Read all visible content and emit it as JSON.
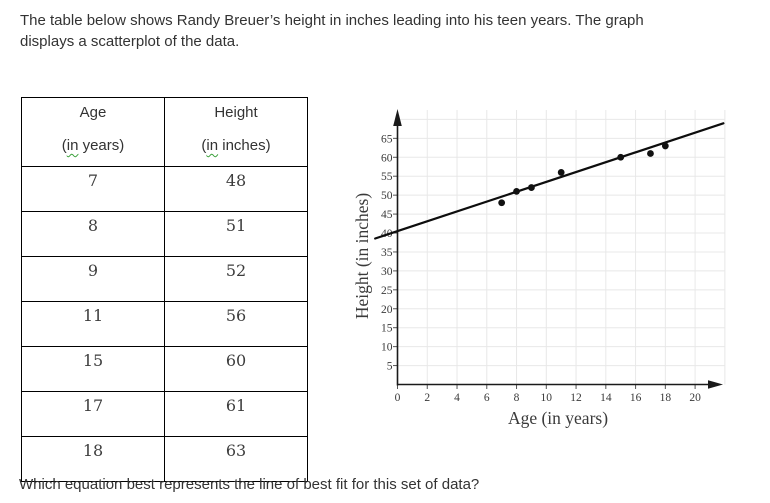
{
  "intro": {
    "lines": [
      "The table below shows Randy Breuer’s height in inches leading into his teen years. The graph",
      "displays a scatterplot of the data."
    ]
  },
  "question": "Which equation best represents the line of best fit for this set of data?",
  "table": {
    "columns": [
      {
        "title": "Age",
        "unit_prefix": "(",
        "unit_word": "in",
        "unit_suffix": " years)"
      },
      {
        "title": "Height",
        "unit_prefix": "(",
        "unit_word": "in",
        "unit_suffix": " inches)"
      }
    ],
    "rows": [
      [
        "7",
        "48"
      ],
      [
        "8",
        "51"
      ],
      [
        "9",
        "52"
      ],
      [
        "11",
        "56"
      ],
      [
        "15",
        "60"
      ],
      [
        "17",
        "61"
      ],
      [
        "18",
        "63"
      ]
    ],
    "spellcheck_color": "#3aa03a"
  },
  "chart_data": {
    "type": "scatter",
    "title": "",
    "xlabel": "Age (in years)",
    "ylabel": "Height (in inches)",
    "x": [
      7,
      8,
      9,
      11,
      15,
      17,
      18
    ],
    "y": [
      48,
      51,
      52,
      56,
      60,
      61,
      63
    ],
    "xlim": [
      0,
      22
    ],
    "ylim": [
      0,
      70
    ],
    "x_ticks": [
      0,
      2,
      4,
      6,
      8,
      10,
      12,
      14,
      16,
      18,
      20
    ],
    "y_ticks": [
      5,
      10,
      15,
      20,
      25,
      30,
      35,
      40,
      45,
      50,
      55,
      60,
      65
    ],
    "grid": true,
    "legend": false,
    "trend_line": {
      "slope": 1.3,
      "intercept": 40.5,
      "x_start": -1.5,
      "x_end": 21.9
    },
    "point_color": "#111111",
    "line_color": "#0d0d0d",
    "axis_color": "#1a1a1a",
    "grid_color": "#e8e8e8"
  }
}
